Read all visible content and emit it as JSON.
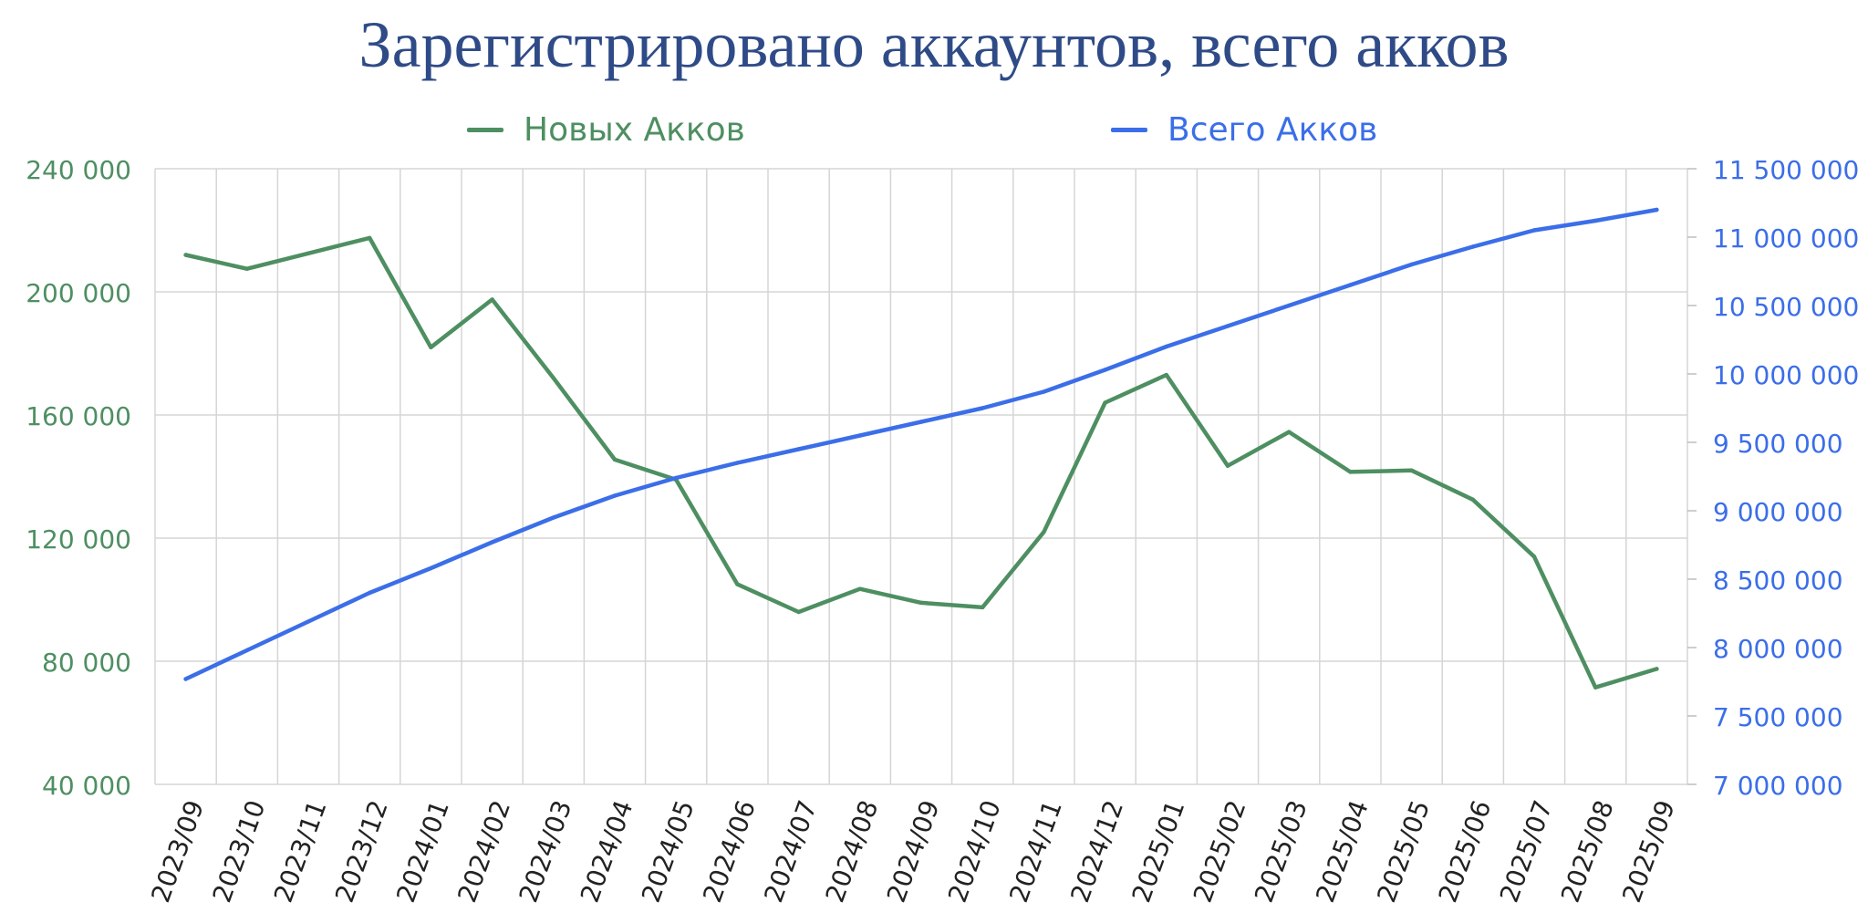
{
  "colors": {
    "new_accounts": "#4e8f62",
    "total_accounts": "#3b6ee8",
    "grid": "#d5d5d5",
    "title": "#2f4b87"
  },
  "chart_data": {
    "type": "line",
    "title": "Зарегистрировано аккаунтов, всего акков",
    "legend_position": "top",
    "grid": true,
    "categories": [
      "2023/09",
      "2023/10",
      "2023/11",
      "2023/12",
      "2024/01",
      "2024/02",
      "2024/03",
      "2024/04",
      "2024/05",
      "2024/06",
      "2024/07",
      "2024/08",
      "2024/09",
      "2024/10",
      "2024/11",
      "2024/12",
      "2025/01",
      "2025/02",
      "2025/03",
      "2025/04",
      "2025/05",
      "2025/06",
      "2025/07",
      "2025/08",
      "2025/09"
    ],
    "y_left": {
      "range": [
        40000,
        240000
      ],
      "ticks": [
        40000,
        80000,
        120000,
        160000,
        200000,
        240000
      ],
      "tick_labels": [
        "40 000",
        "80 000",
        "120 000",
        "160 000",
        "200 000",
        "240 000"
      ]
    },
    "y_right": {
      "range": [
        7000000,
        11500000
      ],
      "ticks": [
        7000000,
        7500000,
        8000000,
        8500000,
        9000000,
        9500000,
        10000000,
        10500000,
        11000000,
        11500000
      ],
      "tick_labels": [
        "7 000 000",
        "7 500 000",
        "8 000 000",
        "8 500 000",
        "9 000 000",
        "9 500 000",
        "10 000 000",
        "10 500 000",
        "11 000 000",
        "11 500 000"
      ]
    },
    "series": [
      {
        "name": "Новых Акков",
        "axis": "left",
        "values": [
          212000,
          207500,
          212500,
          217500,
          182000,
          197500,
          172000,
          145500,
          139000,
          105000,
          96000,
          103500,
          99000,
          97500,
          122000,
          164000,
          173000,
          143500,
          154500,
          141500,
          142000,
          132500,
          114000,
          71500,
          77500
        ]
      },
      {
        "name": "Всего Акков",
        "axis": "right",
        "values": [
          7770000,
          7980000,
          8190000,
          8400000,
          8580000,
          8770000,
          8950000,
          9110000,
          9240000,
          9350000,
          9450000,
          9550000,
          9650000,
          9750000,
          9870000,
          10030000,
          10200000,
          10350000,
          10500000,
          10650000,
          10800000,
          10930000,
          11050000,
          11120000,
          11200000
        ]
      }
    ]
  }
}
